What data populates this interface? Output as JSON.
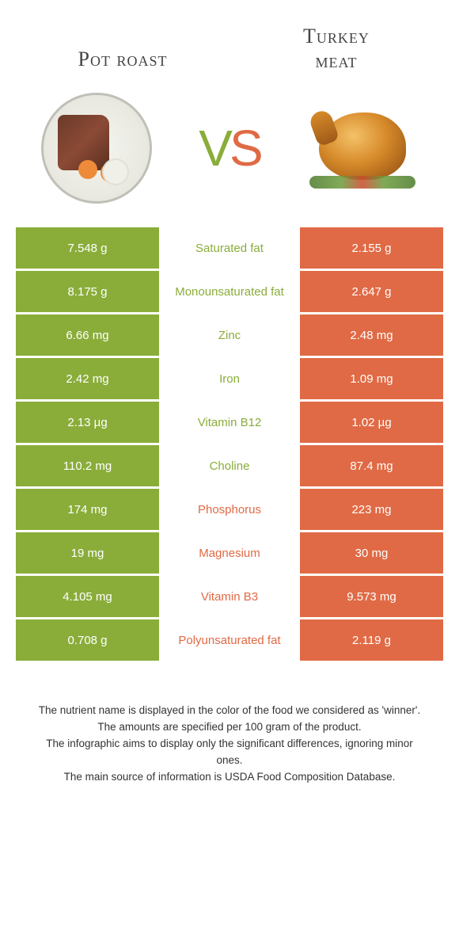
{
  "colors": {
    "green": "#8aad3a",
    "orange": "#e06a45",
    "white": "#ffffff"
  },
  "food_left": {
    "title": "Pot roast"
  },
  "food_right": {
    "title_line1": "Turkey",
    "title_line2": "meat"
  },
  "vs": {
    "v": "V",
    "s": "S"
  },
  "rows": [
    {
      "left": "7.548 g",
      "label": "Saturated fat",
      "right": "2.155 g",
      "winner": "left"
    },
    {
      "left": "8.175 g",
      "label": "Monounsaturated fat",
      "right": "2.647 g",
      "winner": "left"
    },
    {
      "left": "6.66 mg",
      "label": "Zinc",
      "right": "2.48 mg",
      "winner": "left"
    },
    {
      "left": "2.42 mg",
      "label": "Iron",
      "right": "1.09 mg",
      "winner": "left"
    },
    {
      "left": "2.13 µg",
      "label": "Vitamin B12",
      "right": "1.02 µg",
      "winner": "left"
    },
    {
      "left": "110.2 mg",
      "label": "Choline",
      "right": "87.4 mg",
      "winner": "left"
    },
    {
      "left": "174 mg",
      "label": "Phosphorus",
      "right": "223 mg",
      "winner": "right"
    },
    {
      "left": "19 mg",
      "label": "Magnesium",
      "right": "30 mg",
      "winner": "right"
    },
    {
      "left": "4.105 mg",
      "label": "Vitamin B3",
      "right": "9.573 mg",
      "winner": "right"
    },
    {
      "left": "0.708 g",
      "label": "Polyunsaturated fat",
      "right": "2.119 g",
      "winner": "right"
    }
  ],
  "footer": {
    "line1": "The nutrient name is displayed in the color of the food we considered as 'winner'.",
    "line2": "The amounts are specified per 100 gram of the product.",
    "line3": "The infographic aims to display only the significant differences, ignoring minor ones.",
    "line4": "The main source of information is USDA Food Composition Database."
  }
}
